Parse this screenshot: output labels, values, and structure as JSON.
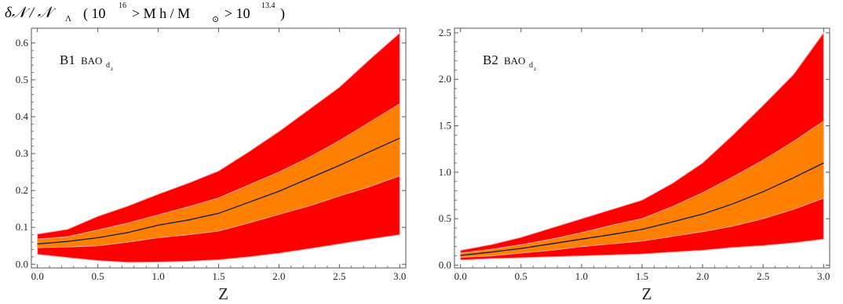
{
  "title": {
    "quantity": "δ𝒩 / 𝒩",
    "quantity_subscript": "Λ",
    "condition_prefix": "( 10",
    "condition_upper_exponent": "16",
    "condition_mid": "> M  h / M",
    "condition_mid_subscript": "⊙",
    "condition_suffix": "> 10",
    "condition_lower_exponent": "13.4",
    "condition_close": ")"
  },
  "colors": {
    "outer_band": "#ff0000",
    "inner_band": "#ff8000",
    "band_edge": "#ffaaaa",
    "central_line": "#0a1a40"
  },
  "chart_data": [
    {
      "type": "area",
      "panel_label": "B1",
      "panel_tag": "BAO",
      "panel_tag_subscript": "d",
      "panel_tag_subsubscript": "z",
      "xlabel": "Z",
      "ylabel": "",
      "xlim": [
        -0.05,
        3.05
      ],
      "ylim": [
        -0.01,
        0.64
      ],
      "xticks": [
        0.0,
        0.5,
        1.0,
        1.5,
        2.0,
        2.5,
        3.0
      ],
      "xtick_labels": [
        "0.0",
        "0.5",
        "1.0",
        "1.5",
        "2.0",
        "2.5",
        "3.0"
      ],
      "yticks": [
        0.0,
        0.1,
        0.2,
        0.3,
        0.4,
        0.5,
        0.6
      ],
      "ytick_labels": [
        "0.0",
        "0.1",
        "0.2",
        "0.3",
        "0.4",
        "0.5",
        "0.6"
      ],
      "x": [
        0.0,
        0.25,
        0.5,
        0.75,
        1.0,
        1.25,
        1.5,
        1.75,
        2.0,
        2.25,
        2.5,
        2.75,
        3.0
      ],
      "series": [
        {
          "role": "outer_upper",
          "values": [
            0.082,
            0.095,
            0.13,
            0.158,
            0.19,
            0.22,
            0.253,
            0.305,
            0.36,
            0.42,
            0.48,
            0.555,
            0.627
          ]
        },
        {
          "role": "inner_upper",
          "values": [
            0.068,
            0.075,
            0.093,
            0.112,
            0.134,
            0.156,
            0.18,
            0.215,
            0.25,
            0.29,
            0.335,
            0.385,
            0.435
          ]
        },
        {
          "role": "central",
          "values": [
            0.055,
            0.062,
            0.072,
            0.086,
            0.106,
            0.12,
            0.138,
            0.168,
            0.198,
            0.233,
            0.268,
            0.305,
            0.342
          ]
        },
        {
          "role": "inner_lower",
          "values": [
            0.045,
            0.047,
            0.05,
            0.06,
            0.072,
            0.08,
            0.09,
            0.112,
            0.135,
            0.158,
            0.185,
            0.21,
            0.24
          ]
        },
        {
          "role": "outer_lower",
          "values": [
            0.027,
            0.018,
            0.01,
            0.005,
            0.006,
            0.008,
            0.012,
            0.02,
            0.03,
            0.042,
            0.055,
            0.068,
            0.08
          ]
        }
      ]
    },
    {
      "type": "area",
      "panel_label": "B2",
      "panel_tag": "BAO",
      "panel_tag_subscript": "d",
      "panel_tag_subsubscript": "z",
      "xlabel": "Z",
      "ylabel": "",
      "xlim": [
        -0.05,
        3.05
      ],
      "ylim": [
        -0.03,
        2.55
      ],
      "xticks": [
        0.0,
        0.5,
        1.0,
        1.5,
        2.0,
        2.5,
        3.0
      ],
      "xtick_labels": [
        "0.0",
        "0.5",
        "1.0",
        "1.5",
        "2.0",
        "2.5",
        "3.0"
      ],
      "yticks": [
        0.0,
        0.5,
        1.0,
        1.5,
        2.0,
        2.5
      ],
      "ytick_labels": [
        "0.0",
        "0.5",
        "1.0",
        "1.5",
        "2.0",
        "2.5"
      ],
      "x": [
        0.0,
        0.25,
        0.5,
        0.75,
        1.0,
        1.25,
        1.5,
        1.75,
        2.0,
        2.25,
        2.5,
        2.75,
        3.0
      ],
      "series": [
        {
          "role": "outer_upper",
          "values": [
            0.16,
            0.22,
            0.3,
            0.4,
            0.5,
            0.6,
            0.7,
            0.88,
            1.1,
            1.4,
            1.72,
            2.05,
            2.5
          ]
        },
        {
          "role": "inner_upper",
          "values": [
            0.13,
            0.17,
            0.22,
            0.28,
            0.35,
            0.43,
            0.5,
            0.63,
            0.78,
            0.95,
            1.13,
            1.33,
            1.55
          ]
        },
        {
          "role": "central",
          "values": [
            0.105,
            0.14,
            0.18,
            0.23,
            0.28,
            0.33,
            0.385,
            0.465,
            0.55,
            0.66,
            0.79,
            0.94,
            1.1
          ]
        },
        {
          "role": "inner_lower",
          "values": [
            0.085,
            0.1,
            0.13,
            0.16,
            0.2,
            0.23,
            0.26,
            0.31,
            0.36,
            0.42,
            0.5,
            0.6,
            0.72
          ]
        },
        {
          "role": "outer_lower",
          "values": [
            0.055,
            0.07,
            0.08,
            0.09,
            0.1,
            0.11,
            0.12,
            0.14,
            0.16,
            0.19,
            0.21,
            0.24,
            0.28
          ]
        }
      ]
    }
  ]
}
